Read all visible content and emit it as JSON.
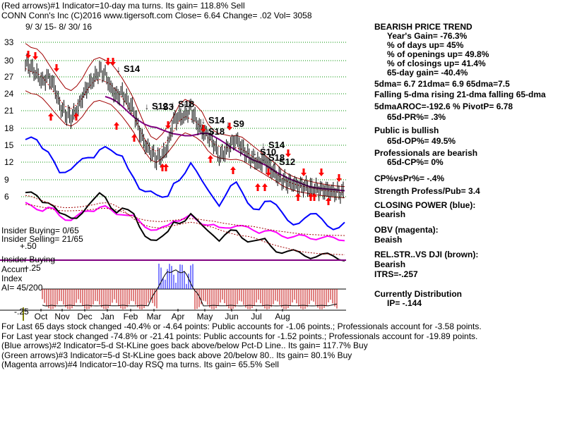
{
  "header": {
    "line1": "(Red arrows)#1 Indicator=10-day ma turns. Its gain= 118.8% Sell",
    "line2": "CONN   Conn's Inc  (C)2016 www.tigersoft.com    Close=  6.64  Change= .02 Vol= 3058",
    "date_range": "9/ 3/ 15-  8/ 30/ 16"
  },
  "right_panel": [
    {
      "text": "BEARISH PRICE TREND",
      "indent": 0
    },
    {
      "text": "Year's Gain= -76.3%",
      "indent": 18
    },
    {
      "text": "% of days up= 45%",
      "indent": 18
    },
    {
      "text": "% of openings up= 49.8%",
      "indent": 18
    },
    {
      "text": "% of closings up= 41.4%",
      "indent": 18
    },
    {
      "text": "65-day gain= -40.4%",
      "indent": 18
    },
    {
      "text": "5dma= 6.7 21dma= 6.9 65dma=7.5",
      "indent": 0
    },
    {
      "text": "Falling 5-dma rising 21-dma falling 65-dma",
      "indent": 0
    },
    {
      "text": "5dmaAROC=-192.6 %  PivotP= 6.78",
      "indent": 0
    },
    {
      "text": "65d-PR%= .3%",
      "indent": 18
    },
    {
      "text": "Public is bullish",
      "indent": 0
    },
    {
      "text": "65d-OP%= 49.5%",
      "indent": 18
    },
    {
      "text": "Professionals are bearish",
      "indent": 0
    },
    {
      "text": "65d-CP%= 0%",
      "indent": 18
    },
    {
      "text": "CP%vsPr%= -.4%",
      "indent": 0
    },
    {
      "text": "Strength Profess/Pub= 3.4",
      "indent": 0
    },
    {
      "text": "CLOSING POWER (blue):",
      "indent": 0
    },
    {
      "text": "Bearish",
      "indent": 0
    },
    {
      "text": "OBV (magenta):",
      "indent": 0
    },
    {
      "text": "Beaish",
      "indent": 0
    },
    {
      "text": "REL.STR..VS DJI (brown):",
      "indent": 0
    },
    {
      "text": "Bearish",
      "indent": 0
    },
    {
      "text": "ITRS=-.257",
      "indent": 0
    },
    {
      "text": "Currently Distribution",
      "indent": 0
    },
    {
      "text": "IP= -.144",
      "indent": 18
    }
  ],
  "left_labels": {
    "insider_buying": "Insider Buying= 0/65",
    "insider_selling": "Insider Selling= 21/65",
    "plus50": "+.50",
    "insider_buying2": "Insider Buying",
    "accum": "Accum",
    "plus25": "+.25",
    "index": "Index",
    "ai": "AI= 45/200",
    "minus25": "-.25"
  },
  "footer": [
    "For Last 65 days stock changed -40.4% or -4.64 points:  Public accounts for -1.06 points.;  Professionals account for -3.58 points.",
    "For Last year stock changed -74.8% or -21.41 points:  Public accounts for -1.52 points.;  Professionals account for -19.89 points.",
    "(Blue arrows)#2 Indicator=5-d St-KLine goes back above/below Pct-D Line.. Its gain= 117.7% Buy",
    "(Green arrows)#3 Indicator=5-d St-KLine goes back above 20/below 80.. Its gain= 80.1% Buy",
    "(Magenta arrows)#4 Indicator=10-day RSQ ma turns. Its gain= 65.5% Sell"
  ],
  "colors": {
    "price": "#000000",
    "ma65": "#800080",
    "bands": "#a00000",
    "closing_power": "#0000ff",
    "obv": "#ff00ff",
    "rel_str": "#000000",
    "arrows": "#ff0000",
    "accum_bars": "#c00000",
    "accum_blue": "#0000ff"
  },
  "chart_data": {
    "type": "line",
    "y_ticks": [
      33,
      30,
      27,
      24,
      21,
      18,
      15,
      12,
      9,
      6
    ],
    "x_ticks": [
      "Oct",
      "Nov",
      "Dec",
      "Jan",
      "Feb",
      "Mar",
      "Apr",
      "May",
      "Jun",
      "Jul",
      "Aug"
    ],
    "signals": [
      {
        "label": "S14",
        "x": "Dec",
        "y": 29.5
      },
      {
        "label": "S12",
        "x": "Jan",
        "y": 20.5
      },
      {
        "label": "S3",
        "x": "Feb",
        "y": 20.5
      },
      {
        "label": "S18",
        "x": "Feb",
        "y": 21.5
      },
      {
        "label": "S14",
        "x": "Mar",
        "y": 19
      },
      {
        "label": "S18",
        "x": "Apr",
        "y": 17
      },
      {
        "label": "S9",
        "x": "Apr",
        "y": 18.5
      },
      {
        "label": "S14",
        "x": "May",
        "y": 14.5
      },
      {
        "label": "S10",
        "x": "May",
        "y": 13
      },
      {
        "label": "S18",
        "x": "Jun",
        "y": 12.5
      },
      {
        "label": "S12",
        "x": "Jun",
        "y": 11.5
      }
    ],
    "series": [
      {
        "name": "Close",
        "values": [
          29.5,
          28.6,
          27.5,
          26.2,
          27,
          25.5,
          22,
          20.5,
          19.8,
          21,
          23.5,
          25.5,
          26.5,
          28.2,
          27.5,
          25,
          23.5,
          24.2,
          22.5,
          21,
          17.5,
          15.2,
          13.8,
          12.5,
          13,
          15,
          19.5,
          19.8,
          20.2,
          21.5,
          19,
          17.5,
          16.8,
          15.5,
          12.8,
          13.8,
          15.2,
          16,
          14.5,
          13.2,
          12.5,
          11.8,
          12.4,
          11,
          9.8,
          9,
          8.5,
          8.2,
          8,
          7.8,
          7.5,
          7.4,
          7.2,
          7,
          6.9,
          6.8,
          6.64
        ]
      }
    ]
  }
}
